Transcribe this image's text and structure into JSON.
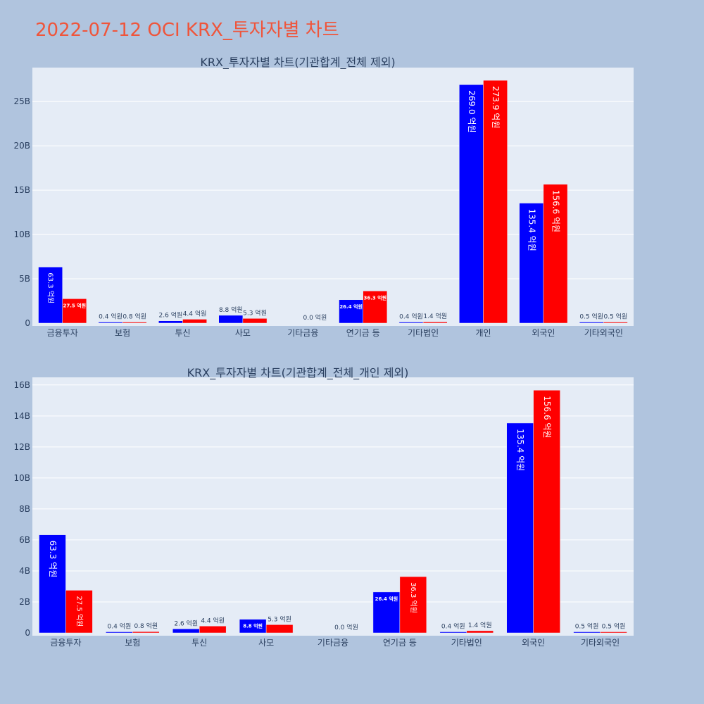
{
  "title": "2022-07-12 OCI KRX_투자자별 차트",
  "colors": {
    "background": "#b0c4de",
    "plot_bg": "#e5ecf6",
    "title": "#ef553b",
    "series_blue": "#0000ff",
    "series_red": "#ff0000"
  },
  "chart_data": [
    {
      "type": "bar",
      "title": "KRX_투자자별 차트(기관합계_전체 제외)",
      "categories": [
        "금융투자",
        "보험",
        "투신",
        "사모",
        "기타금융",
        "연기금 등",
        "기타법인",
        "개인",
        "외국인",
        "기타외국인"
      ],
      "series": [
        {
          "color": "#0000ff",
          "values": [
            6330000000,
            40000000,
            260000000,
            880000000,
            0,
            2640000000,
            40000000,
            26900000000,
            13540000000,
            50000000
          ],
          "labels": [
            "63.3 억원",
            "0.4 억원",
            "2.6 억원",
            "8.8 억원",
            "",
            "26.4 억원",
            "0.4 억원",
            "269.0 억원",
            "135.4 억원",
            "0.5 억원"
          ]
        },
        {
          "color": "#ff0000",
          "values": [
            2750000000,
            80000000,
            440000000,
            530000000,
            0,
            3630000000,
            140000000,
            27390000000,
            15660000000,
            50000000
          ],
          "labels": [
            "27.5 억원",
            "0.8 억원",
            "4.4 억원",
            "5.3 억원",
            "0.0 억원",
            "36.3 억원",
            "1.4 억원",
            "273.9 억원",
            "156.6 억원",
            "0.5 억원"
          ]
        }
      ],
      "yticks": [
        0,
        5000000000,
        10000000000,
        15000000000,
        20000000000,
        25000000000
      ],
      "ytick_labels": [
        "0",
        "5B",
        "10B",
        "15B",
        "20B",
        "25B"
      ],
      "ylim": [
        0,
        28830000000
      ],
      "grid": true
    },
    {
      "type": "bar",
      "title": "KRX_투자자별 차트(기관합계_전체_개인 제외)",
      "categories": [
        "금융투자",
        "보험",
        "투신",
        "사모",
        "기타금융",
        "연기금 등",
        "기타법인",
        "외국인",
        "기타외국인"
      ],
      "series": [
        {
          "color": "#0000ff",
          "values": [
            6330000000,
            40000000,
            260000000,
            880000000,
            0,
            2640000000,
            40000000,
            13540000000,
            50000000
          ],
          "labels": [
            "63.3 억원",
            "0.4 억원",
            "2.6 억원",
            "8.8 억원",
            "",
            "26.4 억원",
            "0.4 억원",
            "135.4 억원",
            "0.5 억원"
          ]
        },
        {
          "color": "#ff0000",
          "values": [
            2750000000,
            80000000,
            440000000,
            530000000,
            0,
            3630000000,
            140000000,
            15660000000,
            50000000
          ],
          "labels": [
            "27.5 억원",
            "0.8 억원",
            "4.4 억원",
            "5.3 억원",
            "0.0 억원",
            "36.3 억원",
            "1.4 억원",
            "156.6 억원",
            "0.5 억원"
          ]
        }
      ],
      "yticks": [
        0,
        2000000000,
        4000000000,
        6000000000,
        8000000000,
        10000000000,
        12000000000,
        14000000000,
        16000000000
      ],
      "ytick_labels": [
        "0",
        "2B",
        "4B",
        "6B",
        "8B",
        "10B",
        "12B",
        "14B",
        "16B"
      ],
      "ylim": [
        0,
        16490000000
      ],
      "grid": true
    }
  ]
}
